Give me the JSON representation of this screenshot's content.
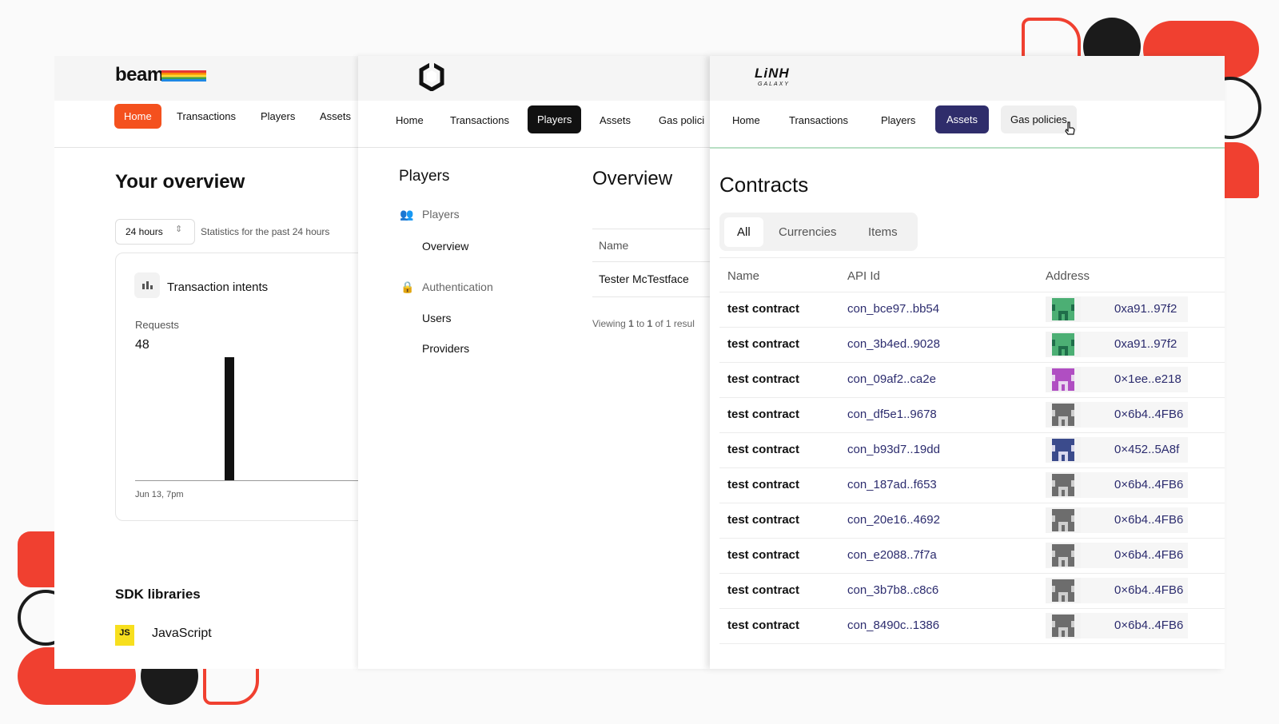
{
  "beam": {
    "logo": "beam",
    "nav": [
      "Home",
      "Transactions",
      "Players",
      "Assets"
    ],
    "title": "Your overview",
    "period": "24 hours",
    "period_note": "Statistics for the past 24 hours",
    "card_title": "Transaction intents",
    "requests_label": "Requests",
    "requests_value": "48",
    "axis_label": "Jun 13, 7pm",
    "sdk_title": "SDK libraries",
    "sdk_badge": "JS",
    "sdk_item": "JavaScript"
  },
  "players_app": {
    "nav": [
      "Home",
      "Transactions",
      "Players",
      "Assets",
      "Gas polici"
    ],
    "sidebar_title": "Players",
    "sidebar_group1": "Players",
    "sidebar_item1": "Overview",
    "sidebar_group2": "Authentication",
    "sidebar_item2": "Users",
    "sidebar_item3": "Providers",
    "main_title": "Overview",
    "col_name": "Name",
    "row_name": "Tester McTestface",
    "paging": [
      "Viewing ",
      "1",
      " to ",
      "1",
      " of 1 resul"
    ]
  },
  "contracts_app": {
    "logo_main": "LiNH",
    "logo_sub": "GALAXY",
    "nav": [
      "Home",
      "Transactions",
      "Players",
      "Assets",
      "Gas policies"
    ],
    "title": "Contracts",
    "filters": [
      "All",
      "Currencies",
      "Items"
    ],
    "columns": [
      "Name",
      "API Id",
      "Address"
    ],
    "rows": [
      {
        "name": "test contract",
        "api_id": "con_bce97..bb54",
        "address": "0xa91..97f2",
        "avatar": "green-owl-avatar"
      },
      {
        "name": "test contract",
        "api_id": "con_3b4ed..9028",
        "address": "0xa91..97f2",
        "avatar": "green-owl-avatar"
      },
      {
        "name": "test contract",
        "api_id": "con_09af2..ca2e",
        "address": "0×1ee..e218",
        "avatar": "purple-pixel-avatar"
      },
      {
        "name": "test contract",
        "api_id": "con_df5e1..9678",
        "address": "0×6b4..4FB6",
        "avatar": "grey-pixel-avatar"
      },
      {
        "name": "test contract",
        "api_id": "con_b93d7..19dd",
        "address": "0×452..5A8f",
        "avatar": "blue-pixel-avatar"
      },
      {
        "name": "test contract",
        "api_id": "con_187ad..f653",
        "address": "0×6b4..4FB6",
        "avatar": "grey-pixel-avatar"
      },
      {
        "name": "test contract",
        "api_id": "con_20e16..4692",
        "address": "0×6b4..4FB6",
        "avatar": "grey-pixel-avatar"
      },
      {
        "name": "test contract",
        "api_id": "con_e2088..7f7a",
        "address": "0×6b4..4FB6",
        "avatar": "grey-pixel-avatar"
      },
      {
        "name": "test contract",
        "api_id": "con_3b7b8..c8c6",
        "address": "0×6b4..4FB6",
        "avatar": "grey-pixel-avatar"
      },
      {
        "name": "test contract",
        "api_id": "con_8490c..1386",
        "address": "0×6b4..4FB6",
        "avatar": "grey-pixel-avatar"
      }
    ]
  },
  "colors": {
    "beam_accent": "#f4511e",
    "players_active": "#111111",
    "contracts_active": "#2f2d6b",
    "deco_red": "#f04030"
  }
}
